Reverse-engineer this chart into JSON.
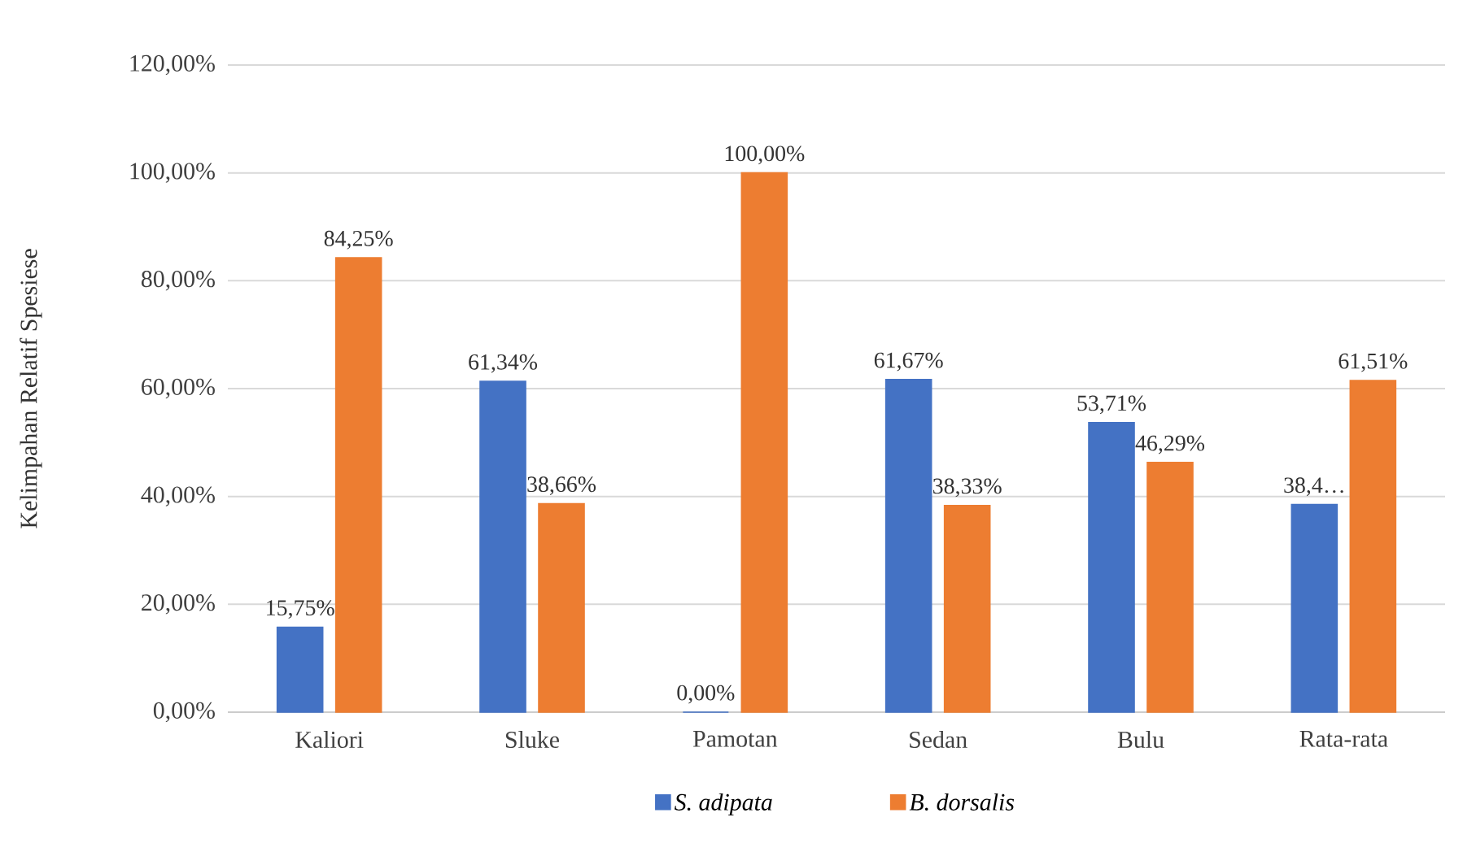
{
  "chart_data": {
    "type": "bar",
    "ylabel": "Kelimpahan Relatif Spesiese",
    "categories": [
      "Kaliori",
      "Sluke",
      "Pamotan",
      "Sedan",
      "Bulu",
      "Rata-rata"
    ],
    "series": [
      {
        "name": "S. adipata",
        "color": "#4472c4",
        "values": [
          15.75,
          61.34,
          0,
          61.67,
          53.71,
          38.5
        ],
        "value_labels": [
          "15,75%",
          "61,34%",
          "0,00%",
          "61,67%",
          "53,71%",
          "38,4…"
        ]
      },
      {
        "name": "B. dorsalis",
        "color": "#ed7d31",
        "values": [
          84.25,
          38.66,
          100,
          38.33,
          46.29,
          61.51
        ],
        "value_labels": [
          "84,25%",
          "38,66%",
          "100,00%",
          "38,33%",
          "46,29%",
          "61,51%"
        ]
      }
    ],
    "ylim": [
      0,
      120
    ],
    "yticks": [
      {
        "value": 0,
        "label": "0,00%"
      },
      {
        "value": 20,
        "label": "20,00%"
      },
      {
        "value": 40,
        "label": "40,00%"
      },
      {
        "value": 60,
        "label": "60,00%"
      },
      {
        "value": 80,
        "label": "80,00%"
      },
      {
        "value": 100,
        "label": "100,00%"
      },
      {
        "value": 120,
        "label": "120,00%"
      }
    ],
    "grid": "y",
    "legend": "bottom"
  }
}
